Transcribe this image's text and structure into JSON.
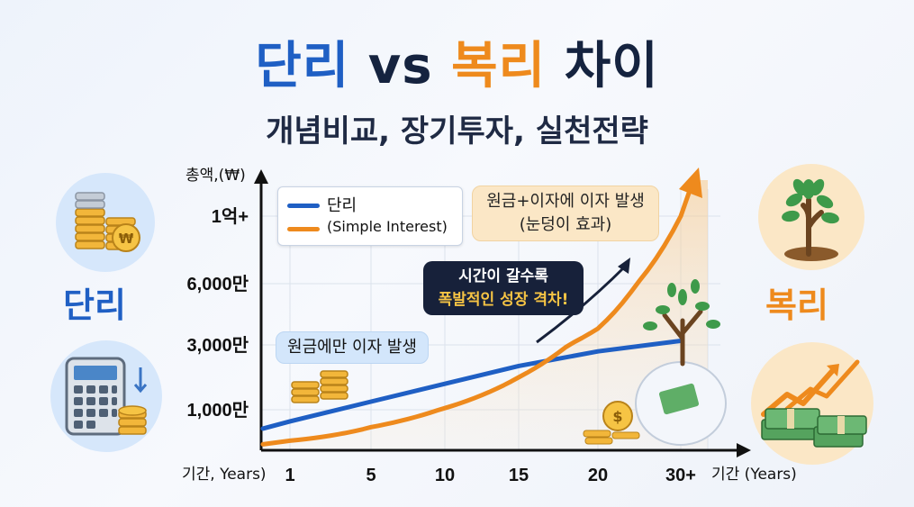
{
  "title": {
    "part1": "단리",
    "part2": "vs",
    "part3": "복리",
    "part4": "차이"
  },
  "subtitle": "개념비교, 장기투자, 실천전략",
  "labels": {
    "simple": "단리",
    "compound": "복리"
  },
  "colors": {
    "simple": "#1f5fc4",
    "compound": "#ee8a1d",
    "title_dark": "#15233f"
  },
  "icons": [
    "coin-stack-icon",
    "calculator-icon",
    "tree-icon",
    "money-growth-icon",
    "snowball-icon",
    "won-coin-icon"
  ],
  "annotations": {
    "compound_a": "원금+이자에 이자 발생",
    "compound_b": "(눈덩이 효과)",
    "gap_a": "시간이 갈수록",
    "gap_b": "폭발적인 성장 격차!",
    "simple": "원금에만 이자 발생"
  },
  "chart_data": {
    "type": "line",
    "title": "",
    "ylabel": "총액,(₩)",
    "xlabel": "기간, Years)",
    "xlabel_right": "기간 (Years)",
    "x_ticks": [
      "1",
      "5",
      "10",
      "15",
      "20",
      "30+"
    ],
    "y_ticks": [
      "1,000만",
      "3,000만",
      "6,000만",
      "1억+"
    ],
    "legend": {
      "simple": "단리",
      "compound": "(Simple Interest)"
    },
    "grid": true,
    "legend_position": "top-left",
    "series": [
      {
        "name": "단리",
        "x": [
          1,
          5,
          10,
          15,
          20,
          30
        ],
        "y": [
          700,
          1250,
          1800,
          2350,
          2800,
          3200
        ]
      },
      {
        "name": "(Simple Interest)",
        "x": [
          1,
          5,
          10,
          15,
          20,
          30
        ],
        "y": [
          200,
          550,
          1050,
          2000,
          3800,
          10000
        ]
      }
    ]
  }
}
